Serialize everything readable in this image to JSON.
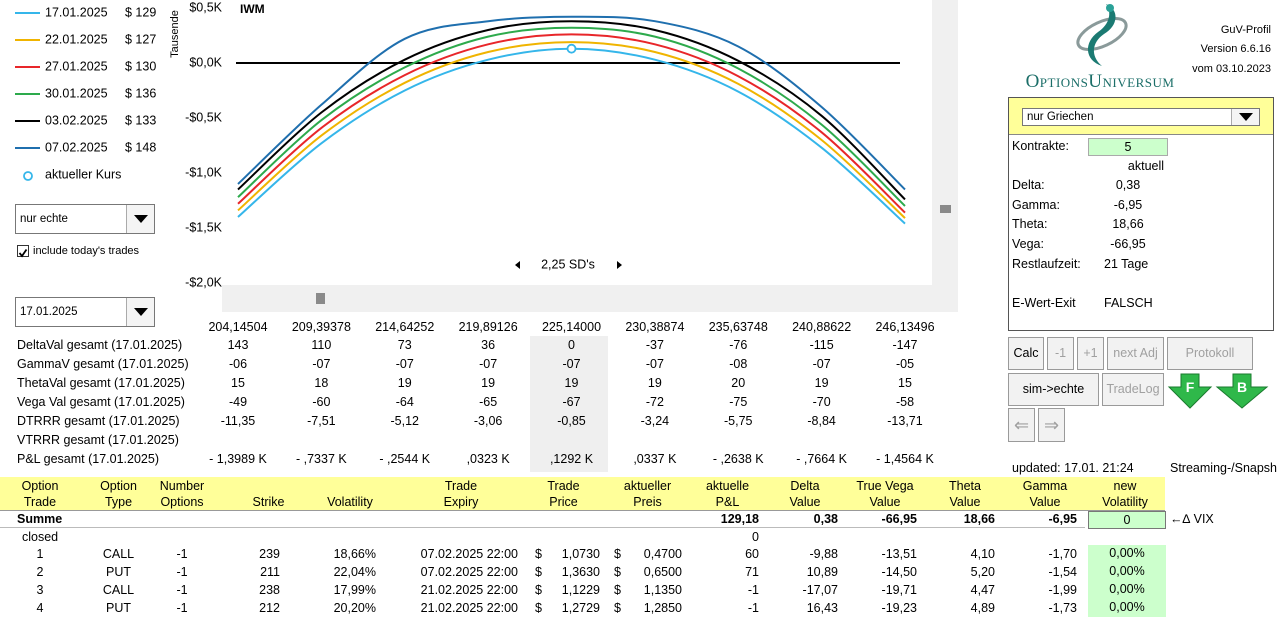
{
  "chart_data": {
    "type": "line",
    "annotation": "IWM",
    "y_label": "Tausende",
    "categories": [
      "204,14504",
      "209,39378",
      "214,64252",
      "219,89126",
      "225,14000",
      "230,38874",
      "235,63748",
      "240,88622",
      "246,13496"
    ],
    "series": [
      {
        "name": "17.01.2025",
        "legend_value": "$ 129",
        "color": "#35b6ea",
        "values": [
          -1.4,
          -0.73,
          -0.25,
          0.03,
          0.13,
          0.03,
          -0.26,
          -0.77,
          -1.46
        ]
      },
      {
        "name": "22.01.2025",
        "legend_value": "$ 127",
        "color": "#f0b400",
        "values": [
          -1.34,
          -0.66,
          -0.18,
          0.1,
          0.19,
          0.1,
          -0.19,
          -0.7,
          -1.41
        ]
      },
      {
        "name": "27.01.2025",
        "legend_value": "$ 130",
        "color": "#e8262a",
        "values": [
          -1.28,
          -0.59,
          -0.11,
          0.17,
          0.26,
          0.17,
          -0.12,
          -0.63,
          -1.36
        ]
      },
      {
        "name": "30.01.2025",
        "legend_value": "$ 136",
        "color": "#2daa4c",
        "values": [
          -1.22,
          -0.52,
          -0.04,
          0.24,
          0.32,
          0.24,
          -0.05,
          -0.56,
          -1.3
        ]
      },
      {
        "name": "03.02.2025",
        "legend_value": "$ 133",
        "color": "#000000",
        "values": [
          -1.15,
          -0.45,
          0.03,
          0.3,
          0.38,
          0.3,
          0.02,
          -0.48,
          -1.24
        ]
      },
      {
        "name": "07.02.2025",
        "legend_value": "$ 148",
        "color": "#1f6fae",
        "values": [
          -1.1,
          -0.38,
          0.22,
          0.38,
          0.42,
          0.38,
          0.15,
          -0.4,
          -1.15
        ]
      },
      {
        "name": "aktueller Kurs",
        "color": "#35b6ea",
        "marker": "circle",
        "values": [
          null,
          null,
          null,
          null,
          0.13,
          null,
          null,
          null,
          null
        ]
      }
    ],
    "ylim": [
      -2.05,
      0.55
    ],
    "yticks": [
      {
        "value": 0.5,
        "label": "$0,5K"
      },
      {
        "value": 0,
        "label": "$0,0K"
      },
      {
        "value": -0.5,
        "label": "-$0,5K"
      },
      {
        "value": -1,
        "label": "-$1,0K"
      },
      {
        "value": -1.5,
        "label": "-$1,5K"
      },
      {
        "value": -2,
        "label": "-$2,0K"
      }
    ],
    "zero_line": true
  },
  "controls": {
    "filter": "nur echte",
    "include_trades": "include today's trades",
    "date": "17.01.2025",
    "sd_range": "2,25 SD's"
  },
  "header": {
    "brand": "OptionsUniversum",
    "title": "GuV-Profil",
    "version": "Version 6.6.16",
    "date": "vom 03.10.2023"
  },
  "greeks": {
    "mode": "nur Griechen",
    "contracts_label": "Kontrakte:",
    "contracts": "5",
    "column": "aktuell",
    "rows": [
      {
        "label": "Delta:",
        "value": "0,38"
      },
      {
        "label": "Gamma:",
        "value": "-6,95"
      },
      {
        "label": "Theta:",
        "value": "18,66"
      },
      {
        "label": "Vega:",
        "value": "-66,95"
      },
      {
        "label": "Restlaufzeit:",
        "value": "21 Tage"
      },
      {
        "label": "E-Wert-Exit",
        "value": "FALSCH"
      }
    ]
  },
  "buttons": [
    "Calc",
    "-1",
    "+1",
    "next Adj",
    "Protokoll",
    "sim->echte",
    "TradeLog",
    "F",
    "B",
    "⇐",
    "⇒"
  ],
  "status": {
    "updated": "updated: 17.01. 21:24",
    "source": "Streaming-/Snapsh"
  },
  "profile_table": {
    "rows": [
      {
        "label": "DeltaVal gesamt (17.01.2025)",
        "values": [
          "143",
          "110",
          "73",
          "36",
          "0",
          "-37",
          "-76",
          "-115",
          "-147"
        ]
      },
      {
        "label": "GammaV gesamt (17.01.2025)",
        "values": [
          "-06",
          "-07",
          "-07",
          "-07",
          "-07",
          "-07",
          "-08",
          "-07",
          "-05"
        ]
      },
      {
        "label": "ThetaVal gesamt (17.01.2025)",
        "values": [
          "15",
          "18",
          "19",
          "19",
          "19",
          "19",
          "20",
          "19",
          "15"
        ]
      },
      {
        "label": "Vega Val gesamt (17.01.2025)",
        "values": [
          "-49",
          "-60",
          "-64",
          "-65",
          "-67",
          "-72",
          "-75",
          "-70",
          "-58"
        ]
      },
      {
        "label": "DTRRR gesamt (17.01.2025)",
        "values": [
          "-11,35",
          "-7,51",
          "-5,12",
          "-3,06",
          "-0,85",
          "-3,24",
          "-5,75",
          "-8,84",
          "-13,71"
        ]
      },
      {
        "label": "VTRRR gesamt (17.01.2025)",
        "values": []
      },
      {
        "label": "P&L gesamt (17.01.2025)",
        "values": [
          "- 1,3989 K",
          "- ,7337 K",
          "- ,2544 K",
          ",0323 K",
          ",1292 K",
          ",0337 K",
          "- ,2638 K",
          "- ,7664 K",
          "- 1,4564 K"
        ]
      }
    ]
  },
  "positions": {
    "header": [
      [
        "Option",
        "Trade"
      ],
      [
        "Option",
        "Type"
      ],
      [
        "Number",
        "Options"
      ],
      [
        "Strike"
      ],
      [
        "Volatility"
      ],
      [
        "Trade",
        "Expiry"
      ],
      [
        "Trade",
        "Price"
      ],
      [
        "aktueller",
        "Preis"
      ],
      [
        "aktuelle",
        "P&L"
      ],
      [
        "Delta",
        "Value"
      ],
      [
        "True Vega",
        "Value"
      ],
      [
        "Theta",
        "Value"
      ],
      [
        "Gamma",
        "Value"
      ],
      [
        "new",
        "Volatility"
      ]
    ],
    "sum": {
      "label": "Summe",
      "pnl": "129,18",
      "delta": "0,38",
      "vega": "-66,95",
      "theta": "18,66",
      "gamma": "-6,95",
      "new_vol": "0",
      "note": "←∆ VIX"
    },
    "closed": {
      "label": "closed",
      "pnl": "0"
    },
    "currency": "$",
    "rows": [
      [
        "1",
        "CALL",
        "-1",
        "239",
        "18,66%",
        "07.02.2025 22:00",
        "1,0730",
        "0,4700",
        "60",
        "-9,88",
        "-13,51",
        "4,10",
        "-1,70",
        "0,00%"
      ],
      [
        "2",
        "PUT",
        "-1",
        "211",
        "22,04%",
        "07.02.2025 22:00",
        "1,3630",
        "0,6500",
        "71",
        "10,89",
        "-14,50",
        "5,20",
        "-1,54",
        "0,00%"
      ],
      [
        "3",
        "CALL",
        "-1",
        "238",
        "17,99%",
        "21.02.2025 22:00",
        "1,1229",
        "1,1350",
        "-1",
        "-17,07",
        "-19,71",
        "4,47",
        "-1,99",
        "0,00%"
      ],
      [
        "4",
        "PUT",
        "-1",
        "212",
        "20,20%",
        "21.02.2025 22:00",
        "1,2729",
        "1,2850",
        "-1",
        "16,43",
        "-19,23",
        "4,89",
        "-1,73",
        "0,00%"
      ]
    ]
  }
}
